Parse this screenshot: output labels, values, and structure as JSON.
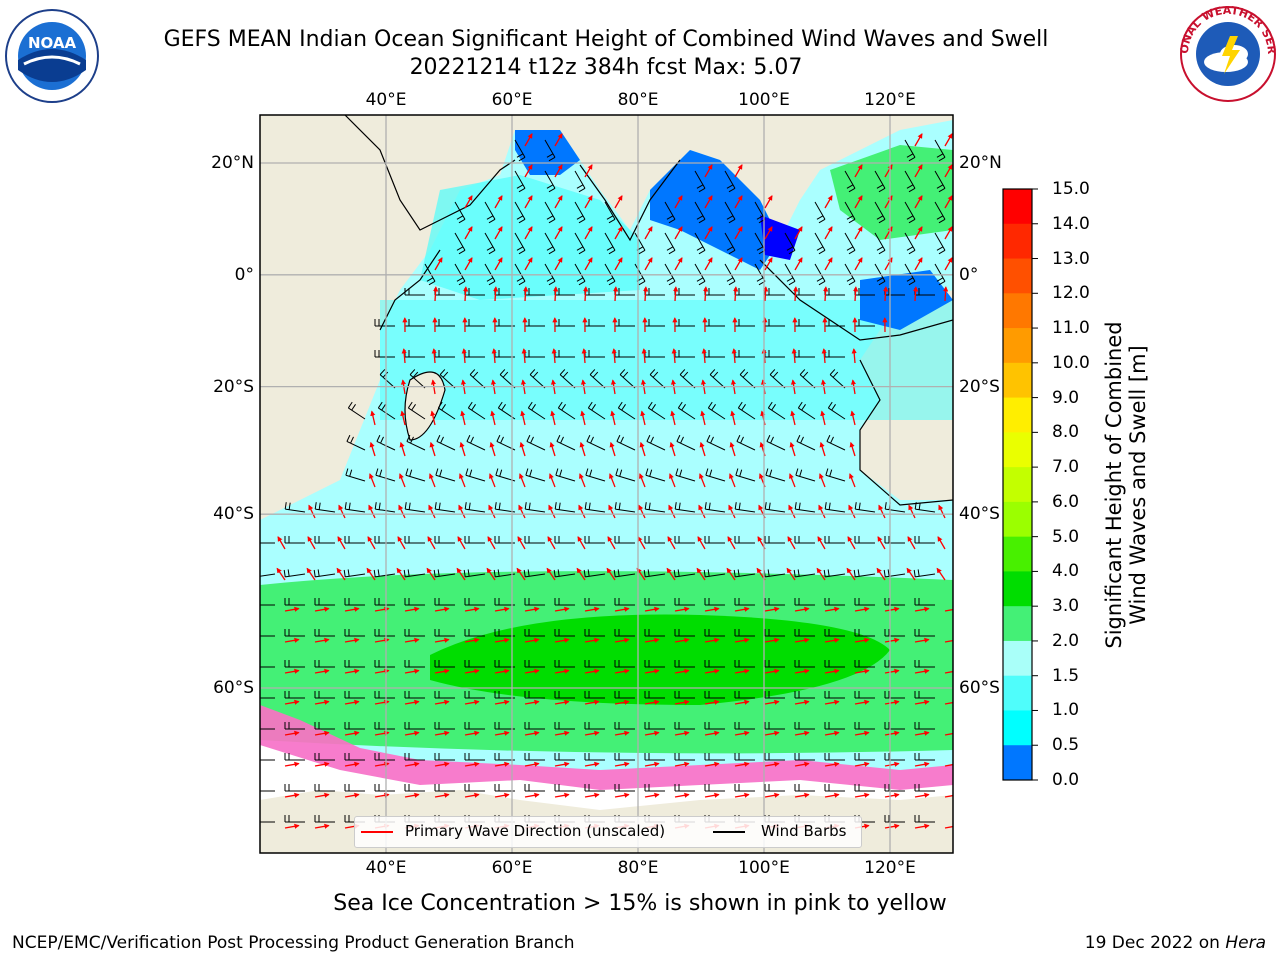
{
  "header": {
    "title_line1": "GEFS MEAN Indian Ocean Significant Height of Combined Wind Waves and Swell",
    "title_line2": "20221214 t12z 384h fcst   Max: 5.07"
  },
  "logos": {
    "left": {
      "name": "noaa-logo",
      "text": "NOAA",
      "ring_text": "NATIONAL OCEANIC AND ATMOSPHERIC ADMINISTRATION · U.S. DEPARTMENT OF COMMERCE"
    },
    "right": {
      "name": "nws-logo",
      "ring_text": "NATIONAL WEATHER SERVICE"
    }
  },
  "map": {
    "lon_labels": [
      "40°E",
      "60°E",
      "80°E",
      "100°E",
      "120°E"
    ],
    "lat_labels": [
      "20°N",
      "0°",
      "20°S",
      "40°S",
      "60°S"
    ],
    "lon_values": [
      40,
      60,
      80,
      100,
      120
    ],
    "lat_values": [
      20,
      0,
      -20,
      -40,
      -60
    ],
    "extent": {
      "lon_min": 20,
      "lon_max": 130,
      "lat_min": -72,
      "lat_max": 28
    },
    "colors": {
      "land": "#efecdc",
      "ocean_fill": "#aaffff",
      "barb": "#000000",
      "arrow": "#ff0000",
      "grid": "#b0b0b0"
    }
  },
  "legend": {
    "primary_wave": "Primary Wave Direction (unscaled)",
    "wind_barbs": "Wind Barbs"
  },
  "colorbar": {
    "label_line1": "Significant Height of Combined",
    "label_line2": "Wind Waves and Swell [m]",
    "ticks": [
      "15.0",
      "14.0",
      "13.0",
      "12.0",
      "11.0",
      "10.0",
      "9.0",
      "8.0",
      "7.0",
      "6.0",
      "5.0",
      "4.0",
      "3.0",
      "2.0",
      "1.5",
      "1.0",
      "0.5",
      "0.0"
    ],
    "colors_top_to_bottom": [
      "#ff0000",
      "#ff2800",
      "#ff5000",
      "#ff7800",
      "#ff9b00",
      "#ffc300",
      "#ffee00",
      "#eaff00",
      "#c3ff00",
      "#9bff00",
      "#48f000",
      "#00dd00",
      "#44f076",
      "#a9fff9",
      "#4ffdfb",
      "#00ffff",
      "#0077ff",
      "#0000ff"
    ]
  },
  "caption": "Sea Ice Concentration > 15% is shown in pink to yellow",
  "footer": {
    "left": "NCEP/EMC/Verification Post Processing Product Generation Branch",
    "right_date": "19 Dec 2022 on",
    "right_host": "Hera"
  }
}
